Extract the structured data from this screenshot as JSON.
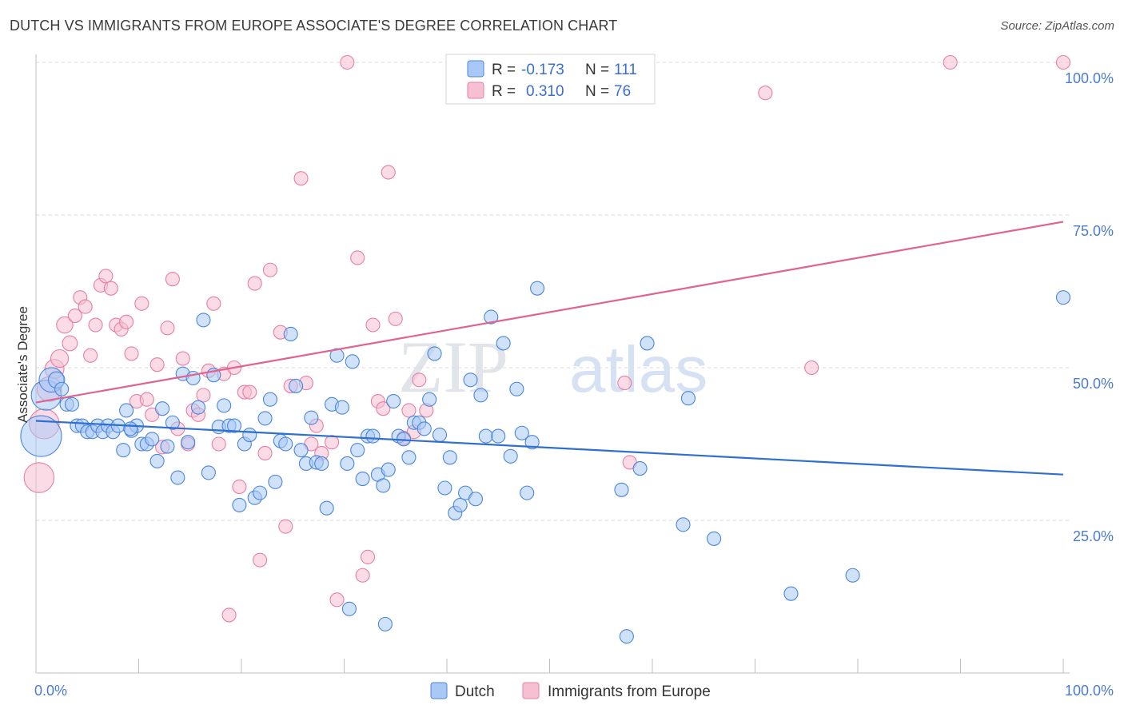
{
  "header": {
    "title": "DUTCH VS IMMIGRANTS FROM EUROPE ASSOCIATE'S DEGREE CORRELATION CHART",
    "source": "Source: ZipAtlas.com"
  },
  "watermark": {
    "zip": "ZIP",
    "atlas": "atlas"
  },
  "colors": {
    "dutch_fill": "#aac8f5",
    "dutch_stroke": "#4a86db",
    "dutch_line": "#2f6fce",
    "imm_fill": "#f7bfd2",
    "imm_stroke": "#e77fa3",
    "imm_line": "#e0638f",
    "grid": "#d9d9d9",
    "axis_label": "#4a7bd0"
  },
  "legend": {
    "rows": [
      {
        "r_label": "R =",
        "r_value": "-0.173",
        "n_label": "N =",
        "n_value": "111"
      },
      {
        "r_label": "R =",
        "r_value": "0.310",
        "n_label": "N =",
        "n_value": "76"
      }
    ]
  },
  "chart_data": {
    "type": "scatter",
    "title": "DUTCH VS IMMIGRANTS FROM EUROPE ASSOCIATE'S DEGREE CORRELATION CHART",
    "xlabel": "",
    "ylabel": "Associate's Degree",
    "xlim": [
      0,
      100
    ],
    "ylim": [
      0,
      100
    ],
    "x_tick_labels": [
      "0.0%",
      "100.0%"
    ],
    "y_ticks": [
      25,
      50,
      75,
      100
    ],
    "y_tick_labels": [
      "25.0%",
      "50.0%",
      "75.0%",
      "100.0%"
    ],
    "grid": true,
    "legend_position": "top-center",
    "series": [
      {
        "name": "Dutch",
        "r": -0.173,
        "n": 111,
        "trend": [
          [
            0,
            41.3
          ],
          [
            100,
            32.5
          ]
        ],
        "points": [
          [
            0.5,
            38.8,
            3.0
          ],
          [
            1.0,
            45.5,
            2.2
          ],
          [
            1.5,
            48.0,
            1.8
          ],
          [
            2.0,
            48.0,
            1.2
          ],
          [
            2.5,
            46.5,
            1
          ],
          [
            3.0,
            44.0,
            1
          ],
          [
            3.5,
            44.0,
            1
          ],
          [
            4.0,
            40.5,
            1
          ],
          [
            4.5,
            40.5,
            1
          ],
          [
            5.0,
            39.5,
            1
          ],
          [
            5.5,
            39.5,
            1
          ],
          [
            6.0,
            40.5,
            1
          ],
          [
            6.5,
            39.5,
            1
          ],
          [
            7.0,
            40.5,
            1
          ],
          [
            7.5,
            39.5,
            1
          ],
          [
            8.0,
            40.5,
            1
          ],
          [
            8.5,
            36.5,
            1
          ],
          [
            8.8,
            43.0,
            1
          ],
          [
            9.3,
            39.7,
            1
          ],
          [
            9.8,
            40.5,
            1
          ],
          [
            10.3,
            37.5,
            1
          ],
          [
            10.8,
            37.5,
            1
          ],
          [
            11.3,
            38.3,
            1
          ],
          [
            11.8,
            34.7,
            1
          ],
          [
            12.3,
            43.3,
            1
          ],
          [
            12.8,
            37.1,
            1
          ],
          [
            13.3,
            41.0,
            1
          ],
          [
            13.8,
            32.0,
            1
          ],
          [
            14.3,
            49.0,
            1
          ],
          [
            14.8,
            37.8,
            1
          ],
          [
            15.3,
            48.3,
            1
          ],
          [
            15.8,
            43.5,
            1
          ],
          [
            16.3,
            57.8,
            1
          ],
          [
            16.8,
            32.8,
            1
          ],
          [
            17.3,
            48.8,
            1
          ],
          [
            17.8,
            40.3,
            1
          ],
          [
            18.3,
            43.8,
            1
          ],
          [
            18.8,
            40.5,
            1
          ],
          [
            19.3,
            40.5,
            1
          ],
          [
            19.8,
            27.5,
            1
          ],
          [
            20.3,
            37.5,
            1
          ],
          [
            20.8,
            39.0,
            1
          ],
          [
            21.3,
            28.7,
            1
          ],
          [
            21.8,
            29.5,
            1
          ],
          [
            22.3,
            41.7,
            1
          ],
          [
            22.8,
            44.8,
            1
          ],
          [
            23.3,
            31.3,
            1
          ],
          [
            23.8,
            38.0,
            1
          ],
          [
            24.3,
            37.5,
            1
          ],
          [
            24.8,
            55.5,
            1
          ],
          [
            25.3,
            47.0,
            1
          ],
          [
            25.8,
            36.5,
            1
          ],
          [
            26.3,
            34.3,
            1
          ],
          [
            26.8,
            41.8,
            1
          ],
          [
            27.3,
            34.5,
            1
          ],
          [
            27.8,
            34.3,
            1
          ],
          [
            28.3,
            27.0,
            1
          ],
          [
            28.8,
            44.0,
            1
          ],
          [
            29.3,
            52.0,
            1
          ],
          [
            29.8,
            43.5,
            1
          ],
          [
            30.3,
            34.3,
            1
          ],
          [
            30.8,
            51.0,
            1
          ],
          [
            31.3,
            36.5,
            1
          ],
          [
            31.8,
            31.8,
            1
          ],
          [
            32.3,
            38.8,
            1
          ],
          [
            32.8,
            38.8,
            1
          ],
          [
            33.3,
            32.5,
            1
          ],
          [
            33.8,
            30.7,
            1
          ],
          [
            34.3,
            33.3,
            1
          ],
          [
            34.8,
            44.5,
            1
          ],
          [
            35.3,
            38.8,
            1
          ],
          [
            35.8,
            38.3,
            1
          ],
          [
            36.3,
            35.3,
            1
          ],
          [
            36.8,
            41.0,
            1
          ],
          [
            37.3,
            41.0,
            1
          ],
          [
            37.8,
            40.0,
            1
          ],
          [
            38.3,
            44.8,
            1
          ],
          [
            38.8,
            52.3,
            1
          ],
          [
            39.3,
            39.0,
            1
          ],
          [
            39.8,
            30.3,
            1
          ],
          [
            40.3,
            35.3,
            1
          ],
          [
            40.8,
            26.2,
            1
          ],
          [
            41.3,
            27.5,
            1
          ],
          [
            41.8,
            29.5,
            1
          ],
          [
            42.3,
            48.0,
            1
          ],
          [
            42.8,
            28.5,
            1
          ],
          [
            43.3,
            45.5,
            1
          ],
          [
            43.8,
            38.8,
            1
          ],
          [
            44.3,
            58.3,
            1
          ],
          [
            45.0,
            38.8,
            1
          ],
          [
            45.5,
            54.0,
            1
          ],
          [
            46.2,
            35.5,
            1
          ],
          [
            46.8,
            46.5,
            1
          ],
          [
            47.3,
            39.3,
            1
          ],
          [
            47.8,
            29.5,
            1
          ],
          [
            48.3,
            37.8,
            1
          ],
          [
            48.8,
            63.0,
            1
          ],
          [
            9.2,
            40.0,
            1
          ],
          [
            30.5,
            10.5,
            1
          ],
          [
            34.0,
            8.0,
            1
          ],
          [
            57.0,
            30.0,
            1
          ],
          [
            57.5,
            6.0,
            1
          ],
          [
            58.8,
            33.5,
            1
          ],
          [
            59.5,
            54.0,
            1
          ],
          [
            63.5,
            45.0,
            1
          ],
          [
            63.0,
            24.3,
            1
          ],
          [
            66.0,
            22.0,
            1
          ],
          [
            73.5,
            13.0,
            1
          ],
          [
            79.5,
            16.0,
            1
          ],
          [
            100.0,
            61.5,
            1
          ]
        ]
      },
      {
        "name": "Immigrants from Europe",
        "r": 0.31,
        "n": 76,
        "trend": [
          [
            0,
            44.3
          ],
          [
            100,
            73.9
          ]
        ],
        "points": [
          [
            0.3,
            32.0,
            2.2
          ],
          [
            0.8,
            40.8,
            2.2
          ],
          [
            1.3,
            46.5,
            1.8
          ],
          [
            1.8,
            49.8,
            1.4
          ],
          [
            2.3,
            51.5,
            1.3
          ],
          [
            2.8,
            57.0,
            1.2
          ],
          [
            3.3,
            54.0,
            1.1
          ],
          [
            3.8,
            58.5,
            1
          ],
          [
            4.3,
            61.5,
            1
          ],
          [
            4.8,
            60.0,
            1
          ],
          [
            5.3,
            52.0,
            1
          ],
          [
            5.8,
            57.0,
            1
          ],
          [
            6.3,
            63.5,
            1
          ],
          [
            6.8,
            65.0,
            1
          ],
          [
            7.3,
            63.0,
            1
          ],
          [
            7.8,
            57.0,
            1
          ],
          [
            8.3,
            56.3,
            1
          ],
          [
            8.8,
            57.5,
            1
          ],
          [
            9.3,
            52.3,
            1
          ],
          [
            9.8,
            44.5,
            1
          ],
          [
            10.3,
            60.5,
            1
          ],
          [
            10.8,
            44.8,
            1
          ],
          [
            11.3,
            42.3,
            1
          ],
          [
            11.8,
            50.5,
            1
          ],
          [
            12.3,
            37.0,
            1
          ],
          [
            12.8,
            56.5,
            1
          ],
          [
            13.3,
            64.5,
            1
          ],
          [
            13.8,
            40.0,
            1
          ],
          [
            14.3,
            51.5,
            1
          ],
          [
            14.8,
            37.5,
            1
          ],
          [
            15.3,
            43.0,
            1
          ],
          [
            15.8,
            42.3,
            1
          ],
          [
            16.3,
            45.5,
            1
          ],
          [
            16.8,
            49.5,
            1
          ],
          [
            17.3,
            60.5,
            1
          ],
          [
            17.8,
            37.5,
            1
          ],
          [
            18.3,
            49.0,
            1
          ],
          [
            18.8,
            9.5,
            1
          ],
          [
            19.3,
            50.0,
            1
          ],
          [
            19.8,
            30.5,
            1
          ],
          [
            20.3,
            46.0,
            1
          ],
          [
            20.8,
            46.0,
            1
          ],
          [
            21.3,
            63.8,
            1
          ],
          [
            21.8,
            18.5,
            1
          ],
          [
            22.3,
            36.0,
            1
          ],
          [
            22.8,
            66.0,
            1
          ],
          [
            23.8,
            55.8,
            1
          ],
          [
            24.3,
            24.0,
            1
          ],
          [
            24.8,
            47.0,
            1
          ],
          [
            25.8,
            81.0,
            1
          ],
          [
            26.3,
            47.5,
            1
          ],
          [
            26.8,
            37.5,
            1
          ],
          [
            27.3,
            40.5,
            1
          ],
          [
            27.8,
            36.0,
            1
          ],
          [
            28.8,
            37.8,
            1
          ],
          [
            29.3,
            12.0,
            1
          ],
          [
            30.3,
            100.0,
            1
          ],
          [
            31.3,
            68.0,
            1
          ],
          [
            31.8,
            16.0,
            1
          ],
          [
            32.3,
            19.0,
            1
          ],
          [
            32.8,
            57.0,
            1
          ],
          [
            33.3,
            44.5,
            1
          ],
          [
            33.8,
            43.3,
            1
          ],
          [
            34.3,
            82.0,
            1
          ],
          [
            35.0,
            58.0,
            1
          ],
          [
            35.8,
            38.5,
            1
          ],
          [
            36.3,
            43.0,
            1
          ],
          [
            36.8,
            39.5,
            1
          ],
          [
            37.3,
            48.0,
            1
          ],
          [
            38.0,
            43.0,
            1
          ],
          [
            57.3,
            47.5,
            1
          ],
          [
            57.8,
            34.5,
            1
          ],
          [
            71.0,
            95.0,
            1
          ],
          [
            75.5,
            50.0,
            1
          ],
          [
            89.0,
            100.0,
            1
          ],
          [
            100.0,
            100.0,
            1
          ]
        ]
      }
    ]
  }
}
